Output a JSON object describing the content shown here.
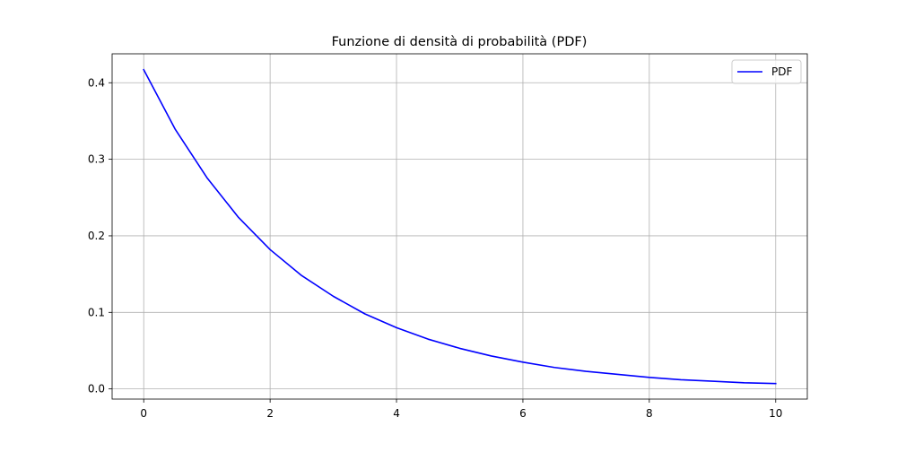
{
  "chart_data": {
    "type": "line",
    "title": "Funzione di densità di probabilità (PDF)",
    "xlabel": "",
    "ylabel": "",
    "xlim": [
      -0.5,
      10.5
    ],
    "ylim": [
      -0.0133,
      0.4378
    ],
    "xticks": [
      0,
      2,
      4,
      6,
      8,
      10
    ],
    "xtick_labels": [
      "0",
      "2",
      "4",
      "6",
      "8",
      "10"
    ],
    "yticks": [
      0.0,
      0.1,
      0.2,
      0.3,
      0.4
    ],
    "ytick_labels": [
      "0.0",
      "0.1",
      "0.2",
      "0.3",
      "0.4"
    ],
    "grid": true,
    "legend_position": "top-right",
    "series": [
      {
        "name": "PDF",
        "color": "#0000ff",
        "x": [
          0,
          0.5,
          1,
          1.5,
          2,
          2.5,
          3,
          3.5,
          4,
          4.5,
          5,
          5.5,
          6,
          6.5,
          7,
          7.5,
          8,
          8.5,
          9,
          9.5,
          10
        ],
        "y": [
          0.417,
          0.339,
          0.276,
          0.224,
          0.182,
          0.148,
          0.121,
          0.098,
          0.08,
          0.065,
          0.053,
          0.043,
          0.035,
          0.028,
          0.023,
          0.019,
          0.015,
          0.012,
          0.01,
          0.008,
          0.007
        ]
      }
    ]
  }
}
